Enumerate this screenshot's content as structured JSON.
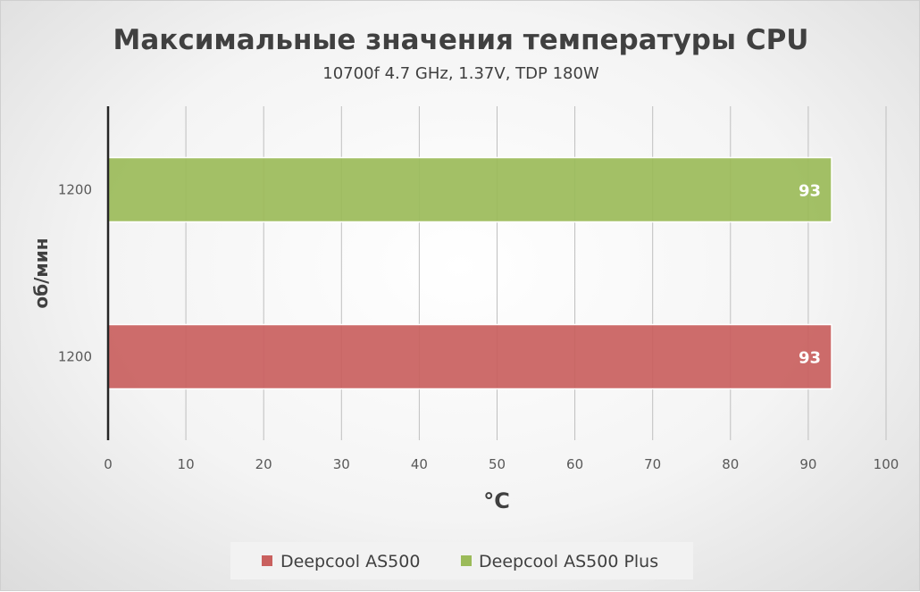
{
  "chart_data": {
    "type": "bar",
    "orientation": "horizontal",
    "title": "Максимальные значения температуры CPU",
    "subtitle": "10700f 4.7 GHz, 1.37V, TDP 180W",
    "xlabel": "°C",
    "ylabel": "об/мин",
    "xlim": [
      0,
      100
    ],
    "x_ticks": [
      0,
      10,
      20,
      30,
      40,
      50,
      60,
      70,
      80,
      90,
      100
    ],
    "grid": "vertical",
    "legend_position": "bottom",
    "categories": [
      "1200",
      "1200"
    ],
    "series": [
      {
        "name": "Deepcool AS500",
        "color": "#c9605e",
        "values": [
          93,
          null
        ]
      },
      {
        "name": "Deepcool AS500 Plus",
        "color": "#9bbb59",
        "values": [
          null,
          93
        ]
      }
    ]
  }
}
